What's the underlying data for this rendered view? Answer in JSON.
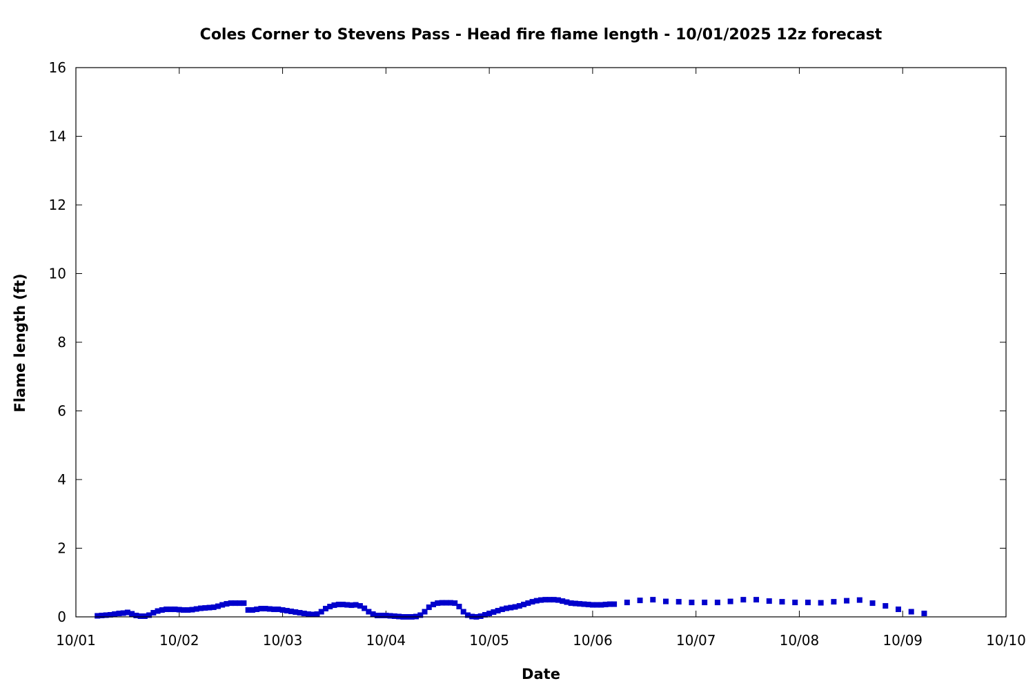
{
  "chart_data": {
    "type": "scatter",
    "title": "Coles Corner to Stevens Pass - Head fire flame length - 10/01/2025 12z forecast",
    "xlabel": "Date",
    "ylabel": "Flame length (ft)",
    "xlim": [
      "10/01",
      "10/10"
    ],
    "ylim": [
      0,
      16
    ],
    "x_ticks": [
      "10/01",
      "10/02",
      "10/03",
      "10/04",
      "10/05",
      "10/06",
      "10/07",
      "10/08",
      "10/09",
      "10/10"
    ],
    "y_ticks": [
      0,
      2,
      4,
      6,
      8,
      10,
      12,
      14,
      16
    ],
    "grid": false,
    "legend": "none",
    "marker_color": "#0000cc",
    "series": [
      {
        "values": [
          [
            "10/01 05:00",
            0.03
          ],
          [
            "10/01 06:00",
            0.04
          ],
          [
            "10/01 07:00",
            0.05
          ],
          [
            "10/01 08:00",
            0.06
          ],
          [
            "10/01 09:00",
            0.08
          ],
          [
            "10/01 10:00",
            0.1
          ],
          [
            "10/01 11:00",
            0.11
          ],
          [
            "10/01 12:00",
            0.13
          ],
          [
            "10/01 13:00",
            0.09
          ],
          [
            "10/01 14:00",
            0.04
          ],
          [
            "10/01 15:00",
            0.02
          ],
          [
            "10/01 16:00",
            0.02
          ],
          [
            "10/01 17:00",
            0.05
          ],
          [
            "10/01 18:00",
            0.12
          ],
          [
            "10/01 19:00",
            0.17
          ],
          [
            "10/01 20:00",
            0.2
          ],
          [
            "10/01 21:00",
            0.22
          ],
          [
            "10/01 22:00",
            0.22
          ],
          [
            "10/01 23:00",
            0.22
          ],
          [
            "10/02 00:00",
            0.21
          ],
          [
            "10/02 01:00",
            0.2
          ],
          [
            "10/02 02:00",
            0.2
          ],
          [
            "10/02 03:00",
            0.21
          ],
          [
            "10/02 04:00",
            0.23
          ],
          [
            "10/02 05:00",
            0.25
          ],
          [
            "10/02 06:00",
            0.26
          ],
          [
            "10/02 07:00",
            0.27
          ],
          [
            "10/02 08:00",
            0.28
          ],
          [
            "10/02 09:00",
            0.31
          ],
          [
            "10/02 10:00",
            0.35
          ],
          [
            "10/02 11:00",
            0.38
          ],
          [
            "10/02 12:00",
            0.4
          ],
          [
            "10/02 13:00",
            0.4
          ],
          [
            "10/02 14:00",
            0.4
          ],
          [
            "10/02 15:00",
            0.4
          ],
          [
            "10/02 16:00",
            0.2
          ],
          [
            "10/02 17:00",
            0.2
          ],
          [
            "10/02 18:00",
            0.22
          ],
          [
            "10/02 19:00",
            0.24
          ],
          [
            "10/02 20:00",
            0.24
          ],
          [
            "10/02 21:00",
            0.23
          ],
          [
            "10/02 22:00",
            0.22
          ],
          [
            "10/02 23:00",
            0.22
          ],
          [
            "10/03 00:00",
            0.2
          ],
          [
            "10/03 01:00",
            0.18
          ],
          [
            "10/03 02:00",
            0.16
          ],
          [
            "10/03 03:00",
            0.14
          ],
          [
            "10/03 04:00",
            0.12
          ],
          [
            "10/03 05:00",
            0.1
          ],
          [
            "10/03 06:00",
            0.08
          ],
          [
            "10/03 07:00",
            0.07
          ],
          [
            "10/03 08:00",
            0.08
          ],
          [
            "10/03 09:00",
            0.15
          ],
          [
            "10/03 10:00",
            0.24
          ],
          [
            "10/03 11:00",
            0.3
          ],
          [
            "10/03 12:00",
            0.34
          ],
          [
            "10/03 13:00",
            0.36
          ],
          [
            "10/03 14:00",
            0.36
          ],
          [
            "10/03 15:00",
            0.35
          ],
          [
            "10/03 16:00",
            0.34
          ],
          [
            "10/03 17:00",
            0.35
          ],
          [
            "10/03 18:00",
            0.32
          ],
          [
            "10/03 19:00",
            0.25
          ],
          [
            "10/03 20:00",
            0.15
          ],
          [
            "10/03 21:00",
            0.08
          ],
          [
            "10/03 22:00",
            0.04
          ],
          [
            "10/03 23:00",
            0.04
          ],
          [
            "10/04 00:00",
            0.04
          ],
          [
            "10/04 01:00",
            0.03
          ],
          [
            "10/04 02:00",
            0.02
          ],
          [
            "10/04 03:00",
            0.01
          ],
          [
            "10/04 04:00",
            0.0
          ],
          [
            "10/04 05:00",
            0.0
          ],
          [
            "10/04 06:00",
            0.0
          ],
          [
            "10/04 07:00",
            0.01
          ],
          [
            "10/04 08:00",
            0.05
          ],
          [
            "10/04 09:00",
            0.15
          ],
          [
            "10/04 10:00",
            0.28
          ],
          [
            "10/04 11:00",
            0.36
          ],
          [
            "10/04 12:00",
            0.4
          ],
          [
            "10/04 13:00",
            0.41
          ],
          [
            "10/04 14:00",
            0.41
          ],
          [
            "10/04 15:00",
            0.41
          ],
          [
            "10/04 16:00",
            0.4
          ],
          [
            "10/04 17:00",
            0.3
          ],
          [
            "10/04 18:00",
            0.15
          ],
          [
            "10/04 19:00",
            0.05
          ],
          [
            "10/04 20:00",
            0.01
          ],
          [
            "10/04 21:00",
            0.0
          ],
          [
            "10/04 22:00",
            0.02
          ],
          [
            "10/04 23:00",
            0.06
          ],
          [
            "10/05 00:00",
            0.1
          ],
          [
            "10/05 01:00",
            0.14
          ],
          [
            "10/05 02:00",
            0.18
          ],
          [
            "10/05 03:00",
            0.22
          ],
          [
            "10/05 04:00",
            0.25
          ],
          [
            "10/05 05:00",
            0.27
          ],
          [
            "10/05 06:00",
            0.29
          ],
          [
            "10/05 07:00",
            0.32
          ],
          [
            "10/05 08:00",
            0.36
          ],
          [
            "10/05 09:00",
            0.4
          ],
          [
            "10/05 10:00",
            0.44
          ],
          [
            "10/05 11:00",
            0.47
          ],
          [
            "10/05 12:00",
            0.49
          ],
          [
            "10/05 13:00",
            0.5
          ],
          [
            "10/05 14:00",
            0.5
          ],
          [
            "10/05 15:00",
            0.5
          ],
          [
            "10/05 16:00",
            0.49
          ],
          [
            "10/05 17:00",
            0.46
          ],
          [
            "10/05 18:00",
            0.43
          ],
          [
            "10/05 19:00",
            0.4
          ],
          [
            "10/05 20:00",
            0.39
          ],
          [
            "10/05 21:00",
            0.38
          ],
          [
            "10/05 22:00",
            0.37
          ],
          [
            "10/05 23:00",
            0.36
          ],
          [
            "10/06 00:00",
            0.35
          ],
          [
            "10/06 01:00",
            0.35
          ],
          [
            "10/06 02:00",
            0.35
          ],
          [
            "10/06 03:00",
            0.36
          ],
          [
            "10/06 04:00",
            0.37
          ],
          [
            "10/06 05:00",
            0.37
          ],
          [
            "10/06 08:00",
            0.42
          ],
          [
            "10/06 11:00",
            0.48
          ],
          [
            "10/06 14:00",
            0.5
          ],
          [
            "10/06 17:00",
            0.45
          ],
          [
            "10/06 20:00",
            0.44
          ],
          [
            "10/06 23:00",
            0.42
          ],
          [
            "10/07 02:00",
            0.42
          ],
          [
            "10/07 05:00",
            0.42
          ],
          [
            "10/07 08:00",
            0.45
          ],
          [
            "10/07 11:00",
            0.5
          ],
          [
            "10/07 14:00",
            0.5
          ],
          [
            "10/07 17:00",
            0.46
          ],
          [
            "10/07 20:00",
            0.44
          ],
          [
            "10/07 23:00",
            0.42
          ],
          [
            "10/08 02:00",
            0.42
          ],
          [
            "10/08 05:00",
            0.41
          ],
          [
            "10/08 08:00",
            0.44
          ],
          [
            "10/08 11:00",
            0.47
          ],
          [
            "10/08 14:00",
            0.49
          ],
          [
            "10/08 17:00",
            0.4
          ],
          [
            "10/08 20:00",
            0.32
          ],
          [
            "10/08 23:00",
            0.22
          ],
          [
            "10/09 02:00",
            0.15
          ],
          [
            "10/09 05:00",
            0.1
          ]
        ]
      }
    ]
  }
}
